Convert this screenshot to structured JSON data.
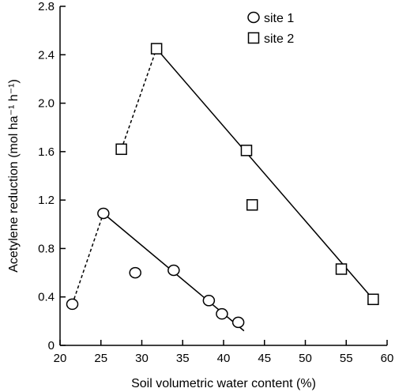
{
  "chart_data": {
    "type": "scatter",
    "xlabel": "Soil volumetric water content (%)",
    "ylabel": "Acetylene reduction (mol ha⁻¹ h⁻¹)",
    "xlim": [
      20,
      60
    ],
    "ylim": [
      0,
      2.8
    ],
    "xticks": [
      20,
      25,
      30,
      35,
      40,
      45,
      50,
      55,
      60
    ],
    "yticks": [
      0,
      0.4,
      0.8,
      1.2,
      1.6,
      2.0,
      2.4,
      2.8
    ],
    "ytick_labels": [
      "0",
      "0.4",
      "0.8",
      "1.2",
      "1.6",
      "2.0",
      "2.4",
      "2.8"
    ],
    "grid": false,
    "legend_position": "top-right",
    "series": [
      {
        "name": "site 1",
        "marker": "circle",
        "points": [
          {
            "x": 21.5,
            "y": 0.34
          },
          {
            "x": 25.3,
            "y": 1.09
          },
          {
            "x": 29.2,
            "y": 0.6
          },
          {
            "x": 33.9,
            "y": 0.62
          },
          {
            "x": 38.2,
            "y": 0.37
          },
          {
            "x": 39.8,
            "y": 0.26
          },
          {
            "x": 41.8,
            "y": 0.19
          }
        ],
        "fit_lines": [
          {
            "style": "dashed",
            "from": {
              "x": 21.5,
              "y": 0.34
            },
            "to": {
              "x": 25.3,
              "y": 1.09
            }
          },
          {
            "style": "solid",
            "from": {
              "x": 25.3,
              "y": 1.09
            },
            "to": {
              "x": 42.5,
              "y": 0.12
            }
          }
        ]
      },
      {
        "name": "site 2",
        "marker": "square",
        "points": [
          {
            "x": 27.5,
            "y": 1.62
          },
          {
            "x": 31.8,
            "y": 2.45
          },
          {
            "x": 42.8,
            "y": 1.61
          },
          {
            "x": 43.5,
            "y": 1.16
          },
          {
            "x": 54.4,
            "y": 0.63
          },
          {
            "x": 58.3,
            "y": 0.38
          }
        ],
        "fit_lines": [
          {
            "style": "dashed",
            "from": {
              "x": 27.5,
              "y": 1.62
            },
            "to": {
              "x": 31.8,
              "y": 2.45
            }
          },
          {
            "style": "solid",
            "from": {
              "x": 31.8,
              "y": 2.45
            },
            "to": {
              "x": 58.3,
              "y": 0.38
            }
          }
        ]
      }
    ]
  }
}
